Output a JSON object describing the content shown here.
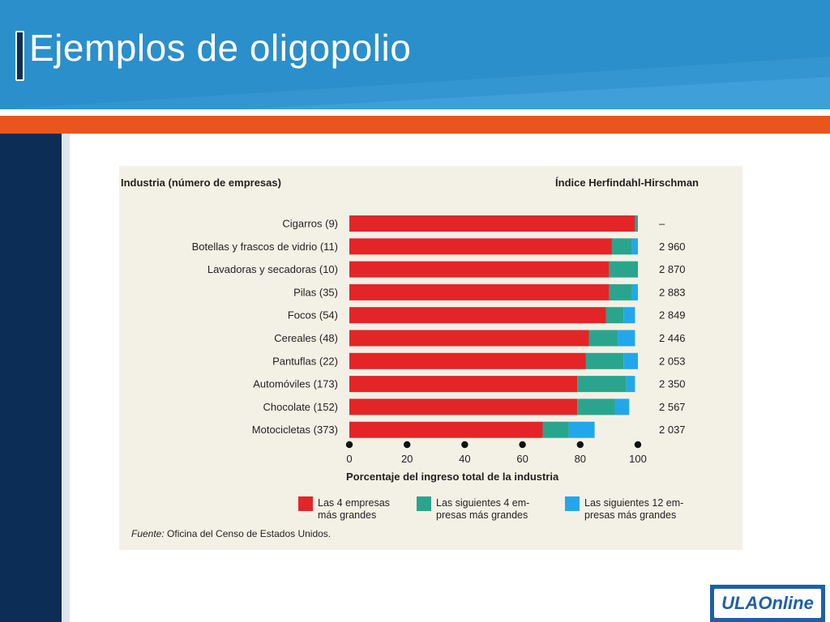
{
  "slide": {
    "title": "Ejemplos de oligopolio",
    "logo_text": "ULAOnline"
  },
  "colors": {
    "header": "#2b8fcb",
    "accent_bar": "#e8561e",
    "left_panel": "#0c2d55",
    "top4": "#e32527",
    "next4": "#2aa58d",
    "next12": "#23a7ea"
  },
  "chart_data": {
    "type": "bar",
    "orientation": "horizontal",
    "stacked": true,
    "header_left": "Industria (número de empresas)",
    "header_right": "Índice Herfindahl-Hirschman",
    "categories": [
      "Cigarros (9)",
      "Botellas y frascos de vidrio (11)",
      "Lavadoras y secadoras (10)",
      "Pilas (35)",
      "Focos (54)",
      "Cereales (48)",
      "Pantuflas (22)",
      "Automóviles (173)",
      "Chocolate (152)",
      "Motocicletas (373)"
    ],
    "series": [
      {
        "name": "Las 4 empresas más grandes",
        "values": [
          99,
          91,
          90,
          90,
          89,
          83,
          82,
          79,
          79,
          67
        ]
      },
      {
        "name": "Las siguientes 4 empresas más grandes",
        "values": [
          1,
          7,
          10,
          8,
          6,
          10,
          13,
          17,
          13,
          9
        ]
      },
      {
        "name": "Las siguientes 12 empresas más grandes",
        "values": [
          0,
          2,
          0,
          2,
          4,
          6,
          5,
          3,
          5,
          9
        ]
      }
    ],
    "legend": [
      [
        "Las 4 empresas",
        "más grandes"
      ],
      [
        "Las siguientes 4 em-",
        "presas más grandes"
      ],
      [
        "Las siguientes 12 em-",
        "presas más grandes"
      ]
    ],
    "hhi": [
      "–",
      "2 960",
      "2 870",
      "2 883",
      "2 849",
      "2 446",
      "2 053",
      "2 350",
      "2 567",
      "2 037"
    ],
    "x_ticks": [
      0,
      20,
      40,
      60,
      80,
      100
    ],
    "xlim": [
      0,
      100
    ],
    "xlabel": "Porcentaje del ingreso total de la industria",
    "source_label": "Fuente:",
    "source_text": "Oficina del Censo de Estados Unidos.",
    "legend_position": "bottom",
    "grid": false
  }
}
